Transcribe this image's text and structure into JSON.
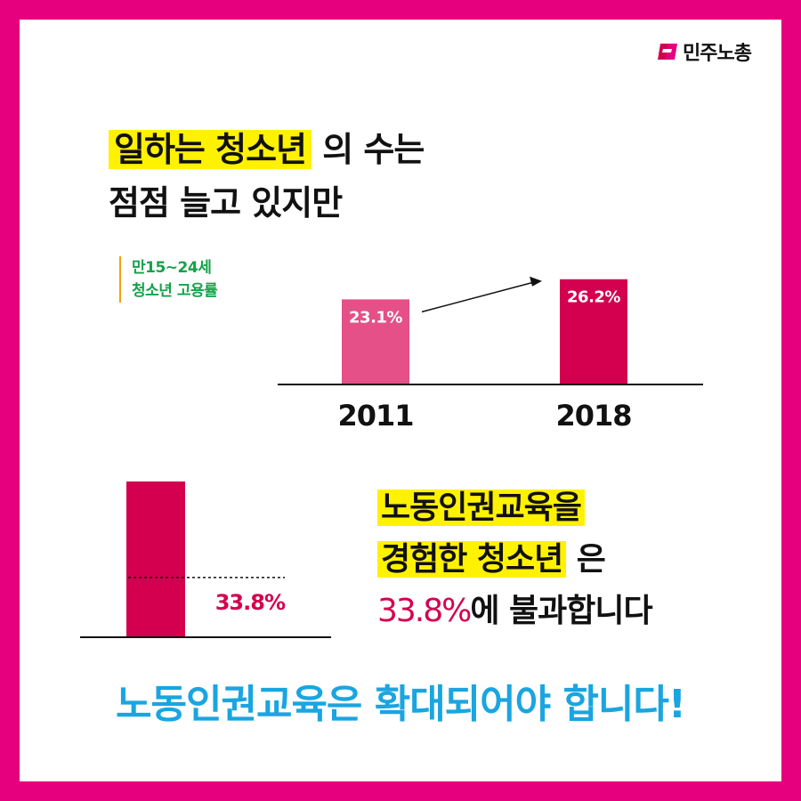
{
  "brand": {
    "name": "민주노총",
    "color_frame": "#e6007e",
    "logo_icon": "flag-icon"
  },
  "headline": {
    "line1_highlight": "일하는 청소년",
    "line1_rest": " 의 수는",
    "line2": "점점 늘고 있지만"
  },
  "employment_label": {
    "line1": "만15~24세",
    "line2": "청소년 고용률"
  },
  "statement": {
    "line1_highlight": "노동인권교육을",
    "line2_highlight": "경험한 청소년",
    "line2_rest": " 은",
    "line3_pct": "33.8%",
    "line3_rest": "에 불과합니다"
  },
  "cta": "노동인권교육은 확대되어야 합니다!",
  "colors": {
    "bar_2011": "#e45087",
    "bar_2018": "#d4004f",
    "highlight": "#fff200",
    "cta": "#1aa5e0",
    "label_green": "#15a24a"
  },
  "chart_data": [
    {
      "type": "bar",
      "title": "",
      "categories": [
        "2011",
        "2018"
      ],
      "values": [
        23.1,
        26.2
      ],
      "value_labels": [
        "23.1%",
        "26.2%"
      ],
      "ylim": [
        0,
        30
      ],
      "annotation": "arrow from 2011 to 2018 indicating increase",
      "grid": false
    },
    {
      "type": "bar",
      "title": "",
      "categories": [
        ""
      ],
      "values": [
        33.8
      ],
      "value_labels": [
        "33.8%"
      ],
      "ylim": [
        0,
        100
      ],
      "reference_line": 33.8,
      "grid": false
    }
  ]
}
